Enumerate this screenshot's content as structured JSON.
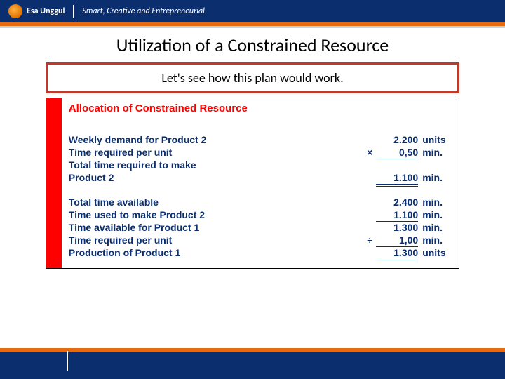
{
  "header": {
    "logo_text": "Esa Unggul",
    "tagline": "Smart, Creative and Entrepreneurial"
  },
  "slide": {
    "title": "Utilization of a Constrained Resource",
    "callout": "Let's see how this plan would work."
  },
  "allocation": {
    "title": "Allocation of Constrained Resource",
    "colors": {
      "title_color": "#ff0000",
      "text_color": "#0b2e6f",
      "sidebar_color": "#ff0000",
      "border_color": "#000000"
    },
    "block1": [
      {
        "label": "Weekly demand for Product 2",
        "op": "",
        "value": "2.200",
        "unit": "units",
        "rule": ""
      },
      {
        "label": "Time required per unit",
        "op": "×",
        "value": "0,50",
        "unit": "min.",
        "rule": "single"
      },
      {
        "label": "Total time required to make",
        "op": "",
        "value": "",
        "unit": "",
        "rule": ""
      },
      {
        "label": "Product 2",
        "op": "",
        "value": "1.100",
        "unit": "min.",
        "rule": "double"
      }
    ],
    "block2": [
      {
        "label": "Total time available",
        "op": "",
        "value": "2.400",
        "unit": "min.",
        "rule": ""
      },
      {
        "label": "Time used to make Product 2",
        "op": "",
        "value": "1.100",
        "unit": "min.",
        "rule": "single"
      },
      {
        "label": "Time available for Product 1",
        "op": "",
        "value": "1.300",
        "unit": "min.",
        "rule": ""
      },
      {
        "label": "Time required per unit",
        "op": "÷",
        "value": "1,00",
        "unit": "min.",
        "rule": "single"
      },
      {
        "label": "Production of Product 1",
        "op": "",
        "value": "1.300",
        "unit": "units",
        "rule": "double"
      }
    ]
  }
}
